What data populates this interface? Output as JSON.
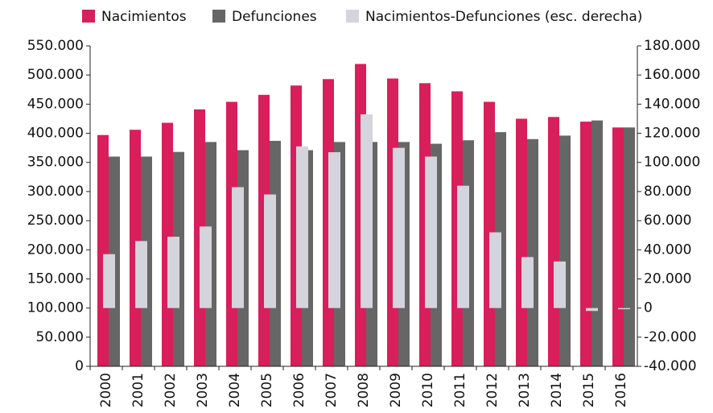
{
  "chart_data": {
    "type": "bar",
    "categories": [
      "2000",
      "2001",
      "2002",
      "2003",
      "2004",
      "2005",
      "2006",
      "2007",
      "2008",
      "2009",
      "2010",
      "2011",
      "2012",
      "2013",
      "2014",
      "2015",
      "2016"
    ],
    "series": [
      {
        "name": "Nacimientos",
        "color": "#d81e5b",
        "values": [
          397000,
          406000,
          418000,
          441000,
          454000,
          466000,
          482000,
          493000,
          519000,
          494000,
          486000,
          472000,
          454000,
          425000,
          428000,
          420000,
          410000
        ]
      },
      {
        "name": "Defunciones",
        "color": "#666666",
        "values": [
          360000,
          360000,
          368000,
          385000,
          371000,
          387000,
          371000,
          385000,
          385000,
          385000,
          382000,
          388000,
          402000,
          390000,
          396000,
          422000,
          410000
        ]
      },
      {
        "name": "Nacimientos-Defunciones (esc. derecha)",
        "color": "#d4d4dc",
        "axis": "y2",
        "values": [
          37000,
          46000,
          49000,
          56000,
          83000,
          78000,
          111000,
          107000,
          133000,
          110000,
          104000,
          84000,
          52000,
          35000,
          32000,
          -2000,
          -500
        ]
      }
    ],
    "ylim": [
      0,
      550000
    ],
    "yticks": [
      0,
      {
        "value": 50000,
        "label": "50.000"
      },
      {
        "value": 100000,
        "label": "100.000"
      },
      {
        "value": 150000,
        "label": "150.000"
      },
      {
        "value": 200000,
        "label": "200.000"
      },
      {
        "value": 250000,
        "label": "250.000"
      },
      {
        "value": 300000,
        "label": "300.000"
      },
      {
        "value": 350000,
        "label": "350.000"
      },
      {
        "value": 400000,
        "label": "400.000"
      },
      {
        "value": 450000,
        "label": "450.000"
      },
      {
        "value": 500000,
        "label": "500.000"
      },
      {
        "value": 550000,
        "label": "550.000"
      }
    ],
    "y2lim": [
      -40000,
      180000
    ],
    "y2ticks": [
      {
        "value": -40000,
        "label": "-40.000"
      },
      {
        "value": -20000,
        "label": "-20.000"
      },
      0,
      {
        "value": 20000,
        "label": "20.000"
      },
      {
        "value": 40000,
        "label": "40.000"
      },
      {
        "value": 60000,
        "label": "60.000"
      },
      {
        "value": 80000,
        "label": "80.000"
      },
      {
        "value": 100000,
        "label": "100.000"
      },
      {
        "value": 120000,
        "label": "120.000"
      },
      {
        "value": 140000,
        "label": "140.000"
      },
      {
        "value": 160000,
        "label": "160.000"
      },
      {
        "value": 180000,
        "label": "180.000"
      }
    ],
    "legend": "top"
  }
}
